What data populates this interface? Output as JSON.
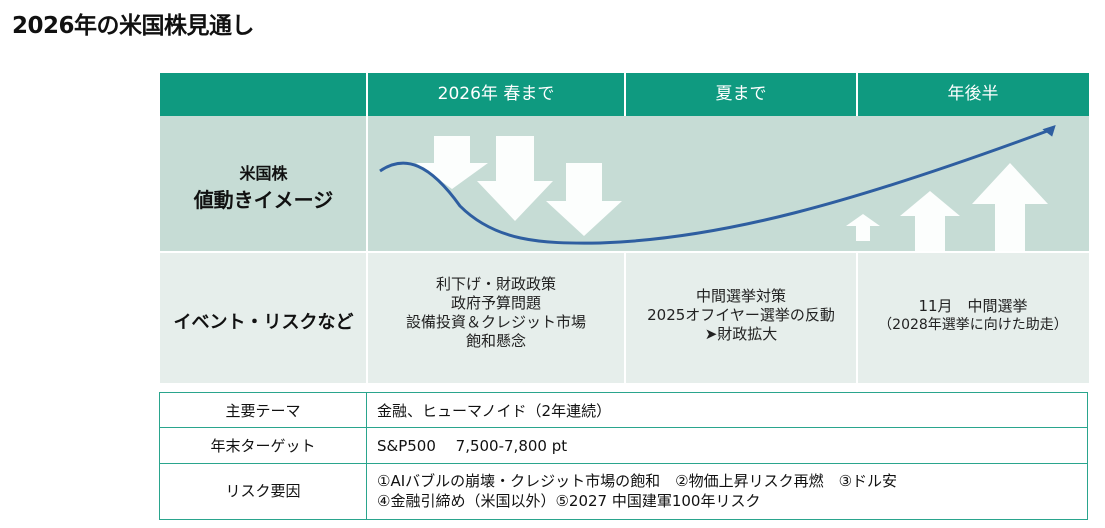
{
  "page": {
    "title": "2026年の米国株見通し"
  },
  "outlook": {
    "periods": [
      "2026年 春まで",
      "夏まで",
      "年後半"
    ],
    "price_label_line1": "米国株",
    "price_label_line2": "値動きイメージ",
    "events_label": "イベント・リスクなど",
    "events": [
      [
        "利下げ・財政政策",
        "政府予算問題",
        "設備投資＆クレジット市場",
        "飽和懸念"
      ],
      [
        "中間選挙対策",
        "2025オフイヤー選挙の反動",
        "➤財政拡大"
      ],
      [
        "11月　中間選挙",
        "（2028年選挙に向けた助走）"
      ]
    ]
  },
  "themes": {
    "rows": [
      {
        "label": "主要テーマ",
        "lines": [
          "金融、ヒューマノイド（2年連続）"
        ]
      },
      {
        "label": "年末ターゲット",
        "lines": [
          "S&P500　 7,500-7,800 pt"
        ]
      },
      {
        "label": "リスク要因",
        "lines": [
          "①AIバブルの崩壊・クレジット市場の飽和　②物価上昇リスク再燃　③ドル安",
          "④金融引締め（米国以外）⑤2027 中国建軍100年リスク"
        ]
      }
    ]
  },
  "colors": {
    "header": "#0f9a80",
    "price_row_bg": "#c6dcd5",
    "event_row_bg": "#e6eeeb",
    "curve": "#2e5ea0",
    "arrows": "#ffffff",
    "table_border": "#2aa58d"
  }
}
